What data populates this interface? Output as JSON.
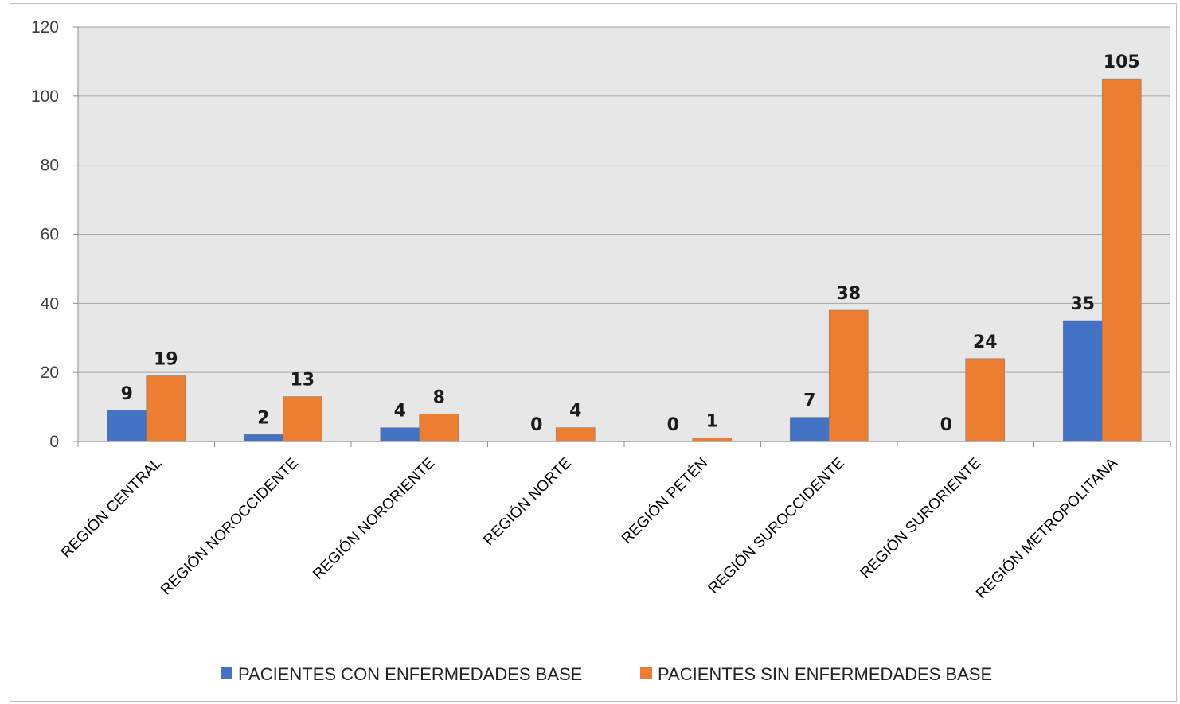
{
  "chart_data": {
    "type": "bar",
    "title": "",
    "xlabel": "",
    "ylabel": "",
    "ylim": [
      0,
      120
    ],
    "yticks": [
      0,
      20,
      40,
      60,
      80,
      100,
      120
    ],
    "grid": true,
    "legend_position": "bottom",
    "plot_background": "#e7e7e7",
    "categories": [
      "REGIÓN CENTRAL",
      "REGIÓN NOROCCIDENTE",
      "REGIÓN NORORIENTE",
      "REGIÓN NORTE",
      "REGIÓN PETÉN",
      "REGIÓN SUROCCIDENTE",
      "REGIÓN SURORIENTE",
      "REGIÓN METROPOLITANA"
    ],
    "series": [
      {
        "name": "PACIENTES CON ENFERMEDADES BASE",
        "color": "#4472c4",
        "values": [
          9,
          2,
          4,
          0,
          0,
          7,
          0,
          35
        ]
      },
      {
        "name": "PACIENTES SIN ENFERMEDADES BASE",
        "color": "#ed7d31",
        "values": [
          19,
          13,
          8,
          4,
          1,
          38,
          24,
          105
        ]
      }
    ]
  }
}
